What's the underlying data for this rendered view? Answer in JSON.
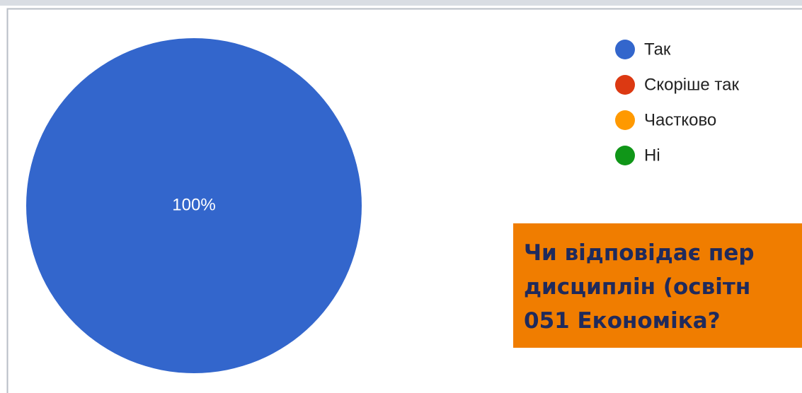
{
  "chart_data": {
    "type": "pie",
    "categories": [
      "Так",
      "Скоріше так",
      "Частково",
      "Ні"
    ],
    "values": [
      100,
      0,
      0,
      0
    ],
    "value_labels": [
      "100%",
      null,
      null,
      null
    ],
    "colors": [
      "#3366cc",
      "#dc3912",
      "#ff9900",
      "#109618"
    ],
    "legend": "right",
    "annotation": [
      "Чи відповідає пер",
      "дисциплін (освітн",
      "051 Економіка?"
    ]
  }
}
